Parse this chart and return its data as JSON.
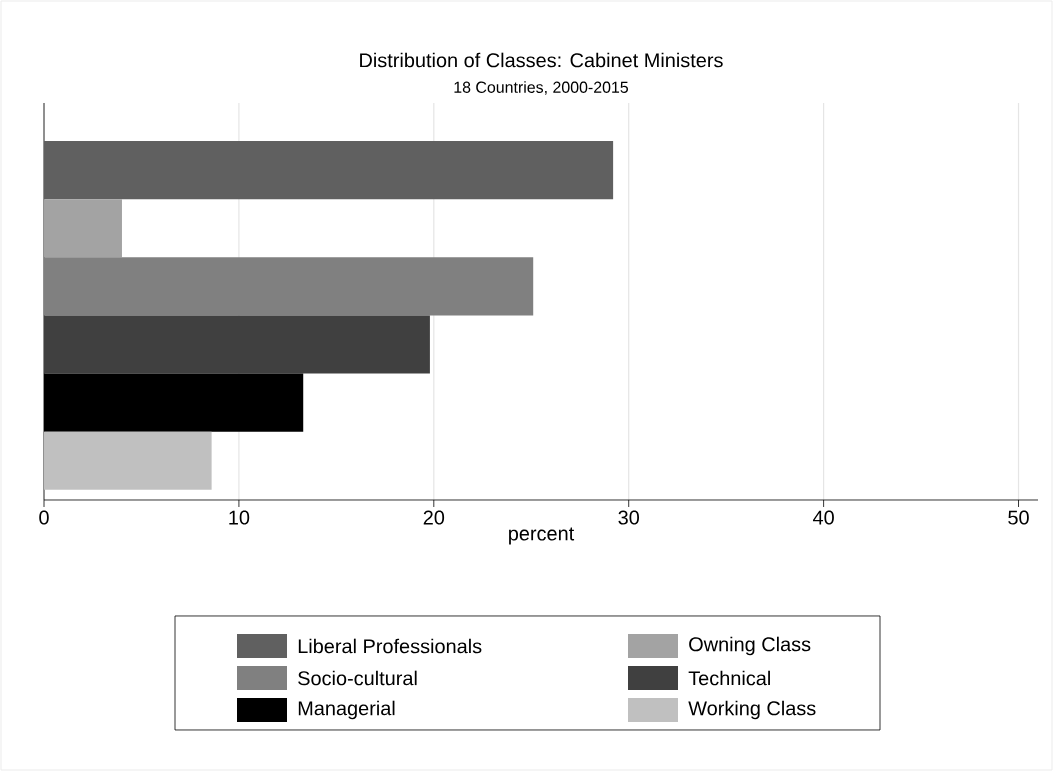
{
  "chart_data": {
    "type": "bar",
    "orientation": "horizontal",
    "title": "Distribution of Classes: Cabinet Ministers",
    "subtitle": "18 Countries, 2000-2015",
    "xlabel": "percent",
    "categories": [
      null
    ],
    "series": [
      {
        "name": "Liberal Professionals",
        "color": "#606060",
        "values": [
          29.2
        ]
      },
      {
        "name": "Owning Class",
        "color": "#a3a3a3",
        "values": [
          4.0
        ]
      },
      {
        "name": "Socio-cultural",
        "color": "#808080",
        "values": [
          25.1
        ]
      },
      {
        "name": "Technical",
        "color": "#404040",
        "values": [
          19.8
        ]
      },
      {
        "name": "Managerial",
        "color": "#000000",
        "values": [
          13.3
        ]
      },
      {
        "name": "Working Class",
        "color": "#c0c0c0",
        "values": [
          8.6
        ]
      }
    ],
    "xlim": [
      0,
      51
    ],
    "xticks": [
      0,
      10,
      20,
      30,
      40,
      50
    ],
    "grid": "x",
    "legend": "bottom"
  }
}
